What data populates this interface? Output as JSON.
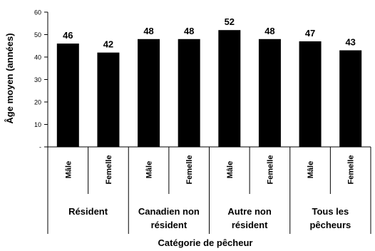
{
  "chart_data": {
    "type": "bar",
    "title": "",
    "xlabel": "Catégorie de pêcheur",
    "ylabel": "Âge moyen (années)",
    "ylim": [
      0,
      60
    ],
    "yticks": [
      {
        "value": 0,
        "label": "-"
      },
      {
        "value": 10,
        "label": "10"
      },
      {
        "value": 20,
        "label": "20"
      },
      {
        "value": 30,
        "label": "30"
      },
      {
        "value": 40,
        "label": "40"
      },
      {
        "value": 50,
        "label": "50"
      },
      {
        "value": 60,
        "label": "60"
      }
    ],
    "grid": false,
    "legend": "none",
    "bar_color": "#000000",
    "groups": [
      {
        "label_lines": [
          "Résident"
        ]
      },
      {
        "label_lines": [
          "Canadien non",
          "résident"
        ]
      },
      {
        "label_lines": [
          "Autre non",
          "résident"
        ]
      },
      {
        "label_lines": [
          "Tous les",
          "pêcheurs"
        ]
      }
    ],
    "categories": [
      "Mâle",
      "Femelle",
      "Mâle",
      "Femelle",
      "Mâle",
      "Femelle",
      "Mâle",
      "Femelle"
    ],
    "values": [
      46,
      42,
      48,
      48,
      52,
      48,
      47,
      43
    ],
    "data_labels": [
      "46",
      "42",
      "48",
      "48",
      "52",
      "48",
      "47",
      "43"
    ]
  }
}
